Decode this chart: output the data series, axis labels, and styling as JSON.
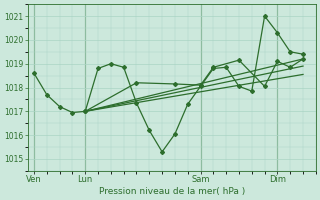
{
  "bg_color": "#cce8dc",
  "grid_color": "#aad4c4",
  "line_color": "#2d6e2d",
  "marker_color": "#2d6e2d",
  "xlabel": "Pression niveau de la mer( hPa )",
  "xlabel_color": "#2d6e2d",
  "ylim": [
    1014.5,
    1021.5
  ],
  "yticks": [
    1015,
    1016,
    1017,
    1018,
    1019,
    1020,
    1021
  ],
  "xtick_labels": [
    "Ven",
    "Lun",
    "Sam",
    "Dim"
  ],
  "xtick_positions": [
    0,
    4,
    13,
    19
  ],
  "vline_positions": [
    0,
    4,
    13,
    19
  ],
  "xlim": [
    -0.5,
    22
  ],
  "series1_x": [
    0,
    1,
    2,
    3,
    4,
    5,
    6,
    7,
    8,
    9,
    10,
    11,
    12,
    13,
    14,
    15,
    16,
    17,
    18,
    19,
    20,
    21
  ],
  "series1_y": [
    1018.6,
    1017.7,
    1017.2,
    1016.95,
    1017.0,
    1018.8,
    1019.0,
    1018.85,
    1017.35,
    1016.2,
    1015.3,
    1016.05,
    1017.3,
    1018.05,
    1018.8,
    1018.85,
    1018.05,
    1017.85,
    1021.0,
    1020.3,
    1019.5,
    1019.4
  ],
  "series2_x": [
    4,
    8,
    11,
    13,
    14,
    16,
    18,
    19,
    20,
    21
  ],
  "series2_y": [
    1017.0,
    1018.2,
    1018.15,
    1018.1,
    1018.85,
    1019.15,
    1018.05,
    1019.1,
    1018.85,
    1019.2
  ],
  "trend1_x": [
    4,
    21
  ],
  "trend1_y": [
    1017.0,
    1019.2
  ],
  "trend2_x": [
    4,
    21
  ],
  "trend2_y": [
    1017.0,
    1018.9
  ],
  "trend3_x": [
    4,
    21
  ],
  "trend3_y": [
    1017.0,
    1018.55
  ]
}
